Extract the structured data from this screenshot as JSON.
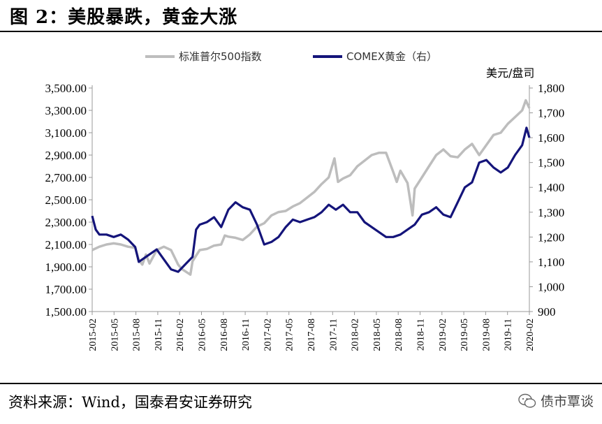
{
  "figure": {
    "title": "图 2：美股暴跌，黄金大涨",
    "source": "资料来源：Wind，国泰君安证券研究",
    "watermark": "债市覃谈"
  },
  "chart_data": {
    "type": "line",
    "y_unit_right": "美元/盘司",
    "x_ticks": [
      "2015-02",
      "2015-05",
      "2015-08",
      "2015-11",
      "2016-02",
      "2016-05",
      "2016-08",
      "2016-11",
      "2017-02",
      "2017-05",
      "2017-08",
      "2017-11",
      "2018-02",
      "2018-05",
      "2018-08",
      "2018-11",
      "2019-02",
      "2019-05",
      "2019-08",
      "2019-11",
      "2020-02"
    ],
    "y_left": {
      "ticks": [
        "1,500.00",
        "1,700.00",
        "1,900.00",
        "2,100.00",
        "2,300.00",
        "2,500.00",
        "2,700.00",
        "2,900.00",
        "3,100.00",
        "3,300.00",
        "3,500.00"
      ],
      "range": [
        1500,
        3500
      ]
    },
    "y_right": {
      "ticks": [
        "900",
        "1,000",
        "1,100",
        "1,200",
        "1,300",
        "1,400",
        "1,500",
        "1,600",
        "1,700",
        "1,800"
      ],
      "range": [
        900,
        1800
      ]
    },
    "x_range": [
      0,
      61
    ],
    "series": [
      {
        "name": "标准普尔500指数",
        "axis": "left",
        "color": "#bdbdbd",
        "points": [
          [
            0,
            2050
          ],
          [
            1,
            2080
          ],
          [
            2,
            2100
          ],
          [
            3,
            2110
          ],
          [
            4,
            2100
          ],
          [
            5,
            2080
          ],
          [
            6,
            2070
          ],
          [
            6.5,
            1960
          ],
          [
            7,
            1920
          ],
          [
            7.5,
            2010
          ],
          [
            8,
            1930
          ],
          [
            9,
            2050
          ],
          [
            10,
            2080
          ],
          [
            11,
            2050
          ],
          [
            12,
            1920
          ],
          [
            12.5,
            1880
          ],
          [
            13,
            1860
          ],
          [
            13.7,
            1830
          ],
          [
            14,
            1950
          ],
          [
            15,
            2050
          ],
          [
            16,
            2060
          ],
          [
            17,
            2090
          ],
          [
            18,
            2100
          ],
          [
            18.5,
            2180
          ],
          [
            19,
            2170
          ],
          [
            20,
            2160
          ],
          [
            21,
            2140
          ],
          [
            22,
            2190
          ],
          [
            23,
            2260
          ],
          [
            24,
            2290
          ],
          [
            25,
            2360
          ],
          [
            26,
            2390
          ],
          [
            27,
            2400
          ],
          [
            28,
            2440
          ],
          [
            29,
            2470
          ],
          [
            30,
            2520
          ],
          [
            31,
            2570
          ],
          [
            32,
            2640
          ],
          [
            33,
            2700
          ],
          [
            33.8,
            2870
          ],
          [
            34.3,
            2660
          ],
          [
            35,
            2690
          ],
          [
            36,
            2720
          ],
          [
            37,
            2800
          ],
          [
            38,
            2850
          ],
          [
            39,
            2900
          ],
          [
            40,
            2920
          ],
          [
            41,
            2920
          ],
          [
            42,
            2750
          ],
          [
            42.5,
            2660
          ],
          [
            43,
            2760
          ],
          [
            44,
            2650
          ],
          [
            44.7,
            2360
          ],
          [
            45,
            2600
          ],
          [
            46,
            2700
          ],
          [
            47,
            2800
          ],
          [
            48,
            2900
          ],
          [
            49,
            2950
          ],
          [
            50,
            2890
          ],
          [
            51,
            2880
          ],
          [
            52,
            2950
          ],
          [
            53,
            3000
          ],
          [
            54,
            2900
          ],
          [
            55,
            2990
          ],
          [
            56,
            3080
          ],
          [
            57,
            3100
          ],
          [
            58,
            3180
          ],
          [
            59,
            3240
          ],
          [
            60,
            3300
          ],
          [
            60.5,
            3390
          ],
          [
            61,
            3320
          ]
        ]
      },
      {
        "name": "COMEX黄金（右）",
        "axis": "right",
        "color": "#14147a",
        "points": [
          [
            0,
            1285
          ],
          [
            0.5,
            1230
          ],
          [
            1,
            1210
          ],
          [
            2,
            1210
          ],
          [
            3,
            1200
          ],
          [
            4,
            1210
          ],
          [
            5,
            1190
          ],
          [
            6,
            1160
          ],
          [
            6.5,
            1100
          ],
          [
            7,
            1110
          ],
          [
            8,
            1130
          ],
          [
            9,
            1150
          ],
          [
            10,
            1110
          ],
          [
            11,
            1070
          ],
          [
            12,
            1060
          ],
          [
            13,
            1090
          ],
          [
            14,
            1120
          ],
          [
            14.5,
            1230
          ],
          [
            15,
            1250
          ],
          [
            16,
            1260
          ],
          [
            17,
            1280
          ],
          [
            18,
            1240
          ],
          [
            19,
            1310
          ],
          [
            20,
            1340
          ],
          [
            21,
            1320
          ],
          [
            22,
            1310
          ],
          [
            23,
            1250
          ],
          [
            24,
            1170
          ],
          [
            25,
            1180
          ],
          [
            26,
            1200
          ],
          [
            27,
            1240
          ],
          [
            28,
            1270
          ],
          [
            29,
            1260
          ],
          [
            30,
            1270
          ],
          [
            31,
            1280
          ],
          [
            32,
            1300
          ],
          [
            33,
            1330
          ],
          [
            34,
            1310
          ],
          [
            35,
            1330
          ],
          [
            36,
            1300
          ],
          [
            37,
            1300
          ],
          [
            38,
            1260
          ],
          [
            39,
            1240
          ],
          [
            40,
            1220
          ],
          [
            41,
            1200
          ],
          [
            42,
            1200
          ],
          [
            43,
            1210
          ],
          [
            44,
            1230
          ],
          [
            45,
            1250
          ],
          [
            46,
            1290
          ],
          [
            47,
            1300
          ],
          [
            48,
            1320
          ],
          [
            49,
            1290
          ],
          [
            50,
            1280
          ],
          [
            51,
            1340
          ],
          [
            52,
            1400
          ],
          [
            53,
            1420
          ],
          [
            54,
            1500
          ],
          [
            55,
            1510
          ],
          [
            56,
            1480
          ],
          [
            57,
            1460
          ],
          [
            58,
            1480
          ],
          [
            59,
            1530
          ],
          [
            60,
            1570
          ],
          [
            60.6,
            1640
          ],
          [
            61,
            1600
          ]
        ]
      }
    ]
  }
}
